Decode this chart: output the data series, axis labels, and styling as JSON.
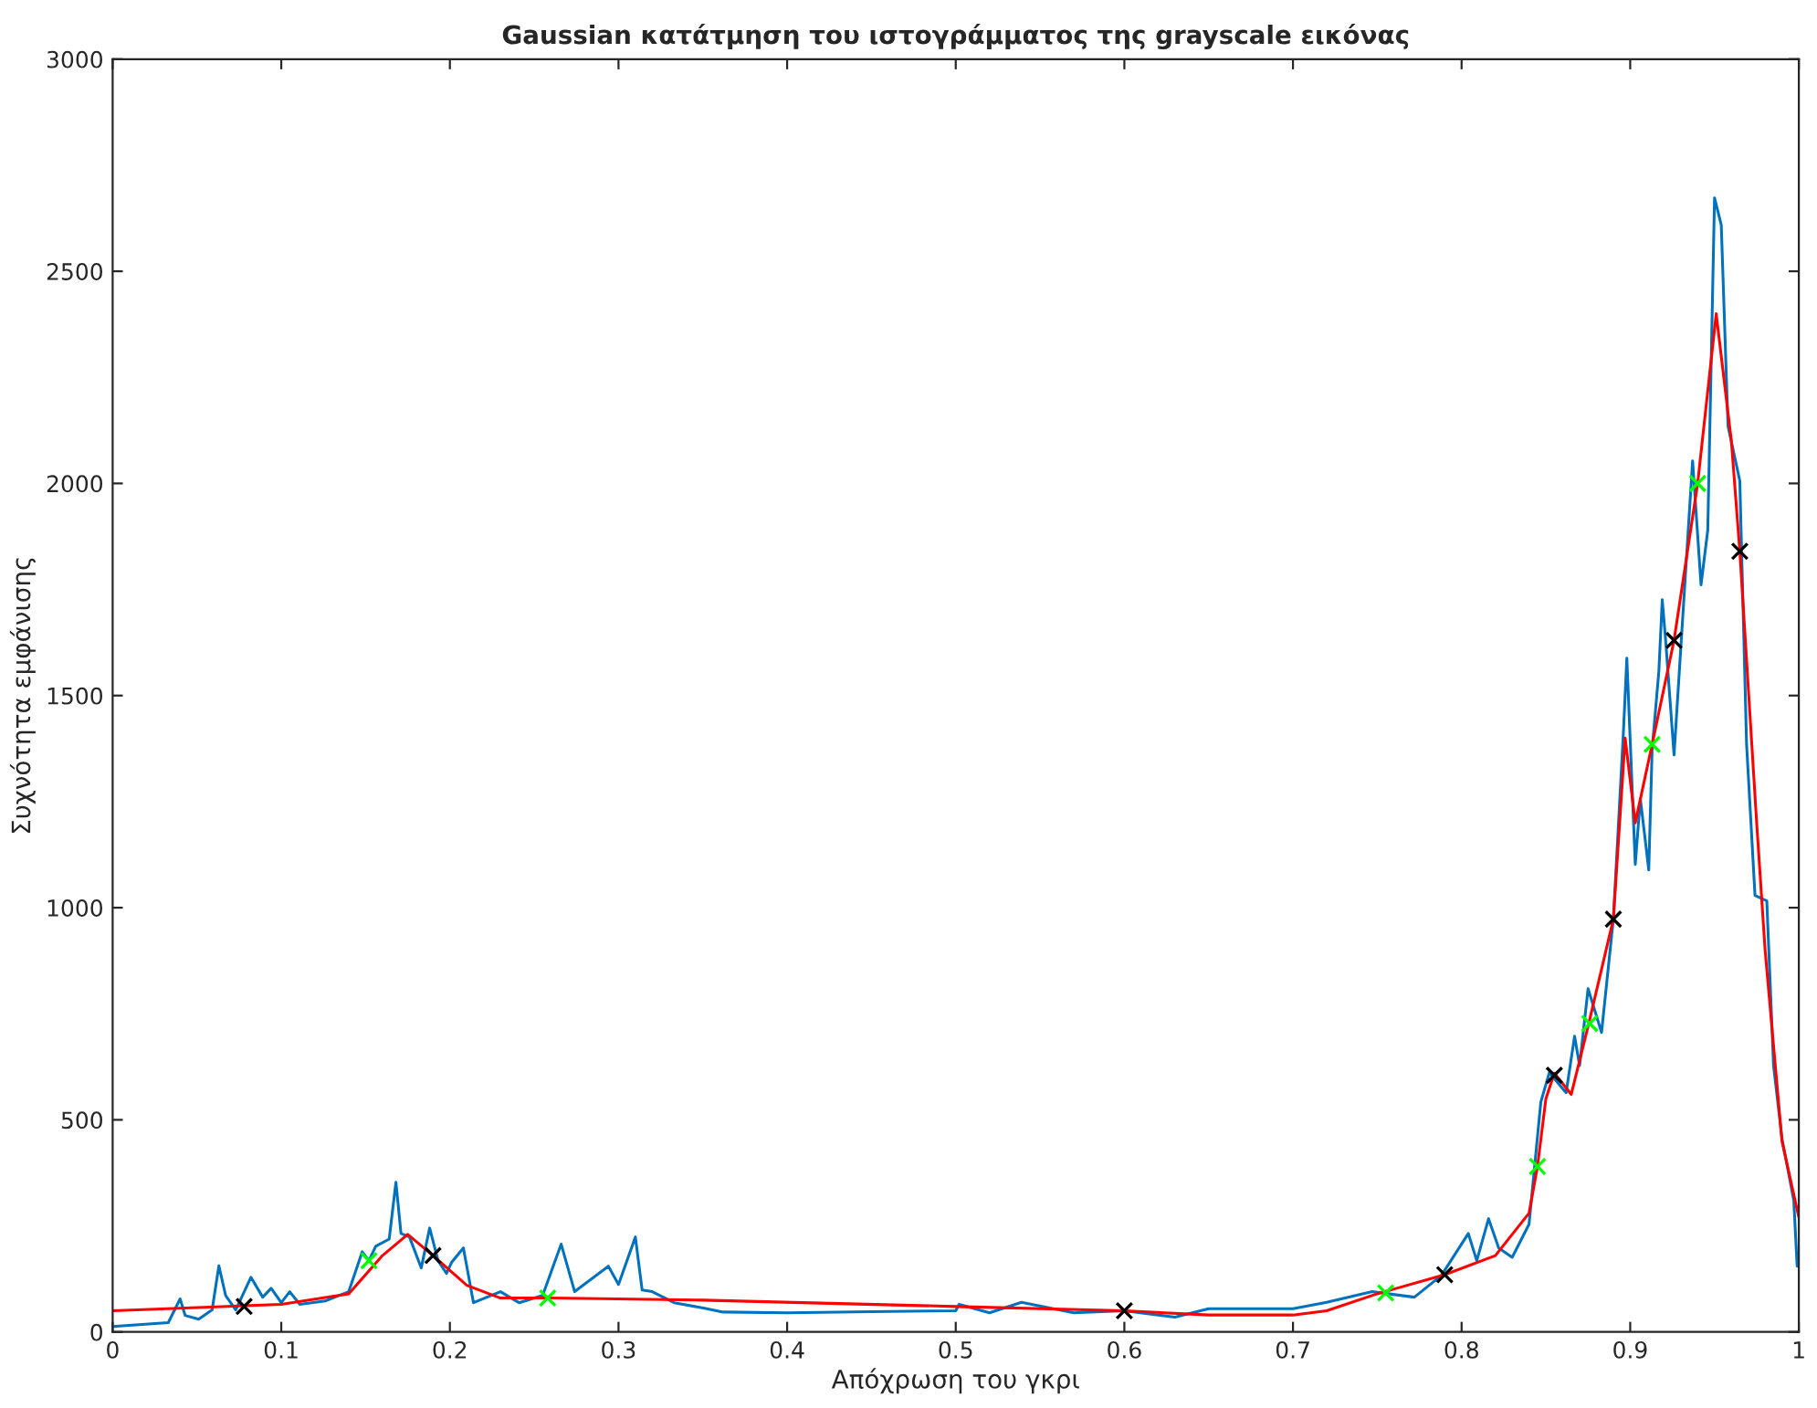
{
  "chart_data": {
    "type": "line",
    "title": "Gaussian κατάτμηση του ιστογράμματος της grayscale εικόνας",
    "xlabel": "Απόχρωση του γκρι",
    "ylabel": "Συχνότητα εμφάνισης",
    "xlim": [
      0,
      1
    ],
    "ylim": [
      0,
      3000
    ],
    "xticks": [
      0,
      0.1,
      0.2,
      0.3,
      0.4,
      0.5,
      0.6,
      0.7,
      0.8,
      0.9,
      1
    ],
    "yticks": [
      0,
      500,
      1000,
      1500,
      2000,
      2500,
      3000
    ],
    "grid": false,
    "legend": false,
    "series": [
      {
        "color": "#0072bd",
        "marker": "none",
        "x": [
          0,
          0.033,
          0.04,
          0.043,
          0.051,
          0.059,
          0.063,
          0.067,
          0.073,
          0.082,
          0.089,
          0.094,
          0.1,
          0.105,
          0.111,
          0.126,
          0.14,
          0.148,
          0.152,
          0.156,
          0.164,
          0.168,
          0.171,
          0.176,
          0.183,
          0.188,
          0.193,
          0.198,
          0.201,
          0.208,
          0.214,
          0.23,
          0.241,
          0.255,
          0.266,
          0.274,
          0.294,
          0.3,
          0.31,
          0.314,
          0.32,
          0.333,
          0.351,
          0.362,
          0.4,
          0.45,
          0.5,
          0.502,
          0.52,
          0.539,
          0.57,
          0.6,
          0.63,
          0.65,
          0.7,
          0.72,
          0.747,
          0.772,
          0.788,
          0.804,
          0.809,
          0.816,
          0.822,
          0.83,
          0.84,
          0.847,
          0.852,
          0.862,
          0.867,
          0.87,
          0.875,
          0.883,
          0.89,
          0.896,
          0.898,
          0.903,
          0.906,
          0.911,
          0.913,
          0.917,
          0.919,
          0.921,
          0.926,
          0.937,
          0.942,
          0.946,
          0.95,
          0.954,
          0.958,
          0.965,
          0.969,
          0.974,
          0.981,
          0.985,
          0.99,
          0.997,
          0.999
        ],
        "values": [
          13,
          22,
          78,
          39,
          30,
          52,
          156,
          86,
          52,
          129,
          82,
          103,
          69,
          95,
          65,
          73,
          95,
          189,
          168,
          202,
          219,
          353,
          232,
          224,
          151,
          245,
          168,
          138,
          164,
          198,
          69,
          95,
          69,
          86,
          207,
          95,
          155,
          112,
          224,
          99,
          95,
          69,
          56,
          47,
          45,
          48,
          50,
          65,
          45,
          70,
          45,
          50,
          35,
          55,
          55,
          70,
          95,
          82,
          133,
          232,
          168,
          267,
          198,
          176,
          254,
          542,
          611,
          564,
          697,
          628,
          809,
          706,
          973,
          1416,
          1588,
          1102,
          1257,
          1089,
          1373,
          1558,
          1726,
          1631,
          1360,
          2053,
          1761,
          1890,
          2673,
          2609,
          2135,
          2006,
          1386,
          1029,
          1016,
          628,
          456,
          310,
          155
        ]
      },
      {
        "color": "#ff0000",
        "marker": "none",
        "x": [
          0,
          0.1,
          0.14,
          0.16,
          0.175,
          0.19,
          0.21,
          0.23,
          0.26,
          0.35,
          0.5,
          0.6,
          0.65,
          0.7,
          0.72,
          0.75,
          0.79,
          0.82,
          0.84,
          0.845,
          0.85,
          0.855,
          0.865,
          0.875,
          0.89,
          0.897,
          0.903,
          0.913,
          0.926,
          0.94,
          0.951,
          0.96,
          0.965,
          0.975,
          0.98,
          0.99,
          1
        ],
        "values": [
          50,
          65,
          90,
          180,
          230,
          180,
          110,
          80,
          80,
          75,
          60,
          50,
          40,
          40,
          50,
          90,
          135,
          180,
          280,
          390,
          550,
          610,
          560,
          720,
          973,
          1400,
          1200,
          1385,
          1630,
          2000,
          2400,
          2100,
          1840,
          1200,
          900,
          450,
          270
        ]
      },
      {
        "type": "scatter",
        "color": "#000000",
        "marker": "cross",
        "x": [
          0.078,
          0.19,
          0.6,
          0.79,
          0.855,
          0.89,
          0.926,
          0.965
        ],
        "values": [
          60,
          180,
          50,
          135,
          605,
          973,
          1630,
          1840
        ]
      },
      {
        "type": "scatter",
        "color": "#00ff00",
        "marker": "cross",
        "x": [
          0.152,
          0.258,
          0.755,
          0.845,
          0.876,
          0.913,
          0.94
        ],
        "values": [
          168,
          80,
          92,
          390,
          727,
          1385,
          2000
        ]
      }
    ]
  }
}
